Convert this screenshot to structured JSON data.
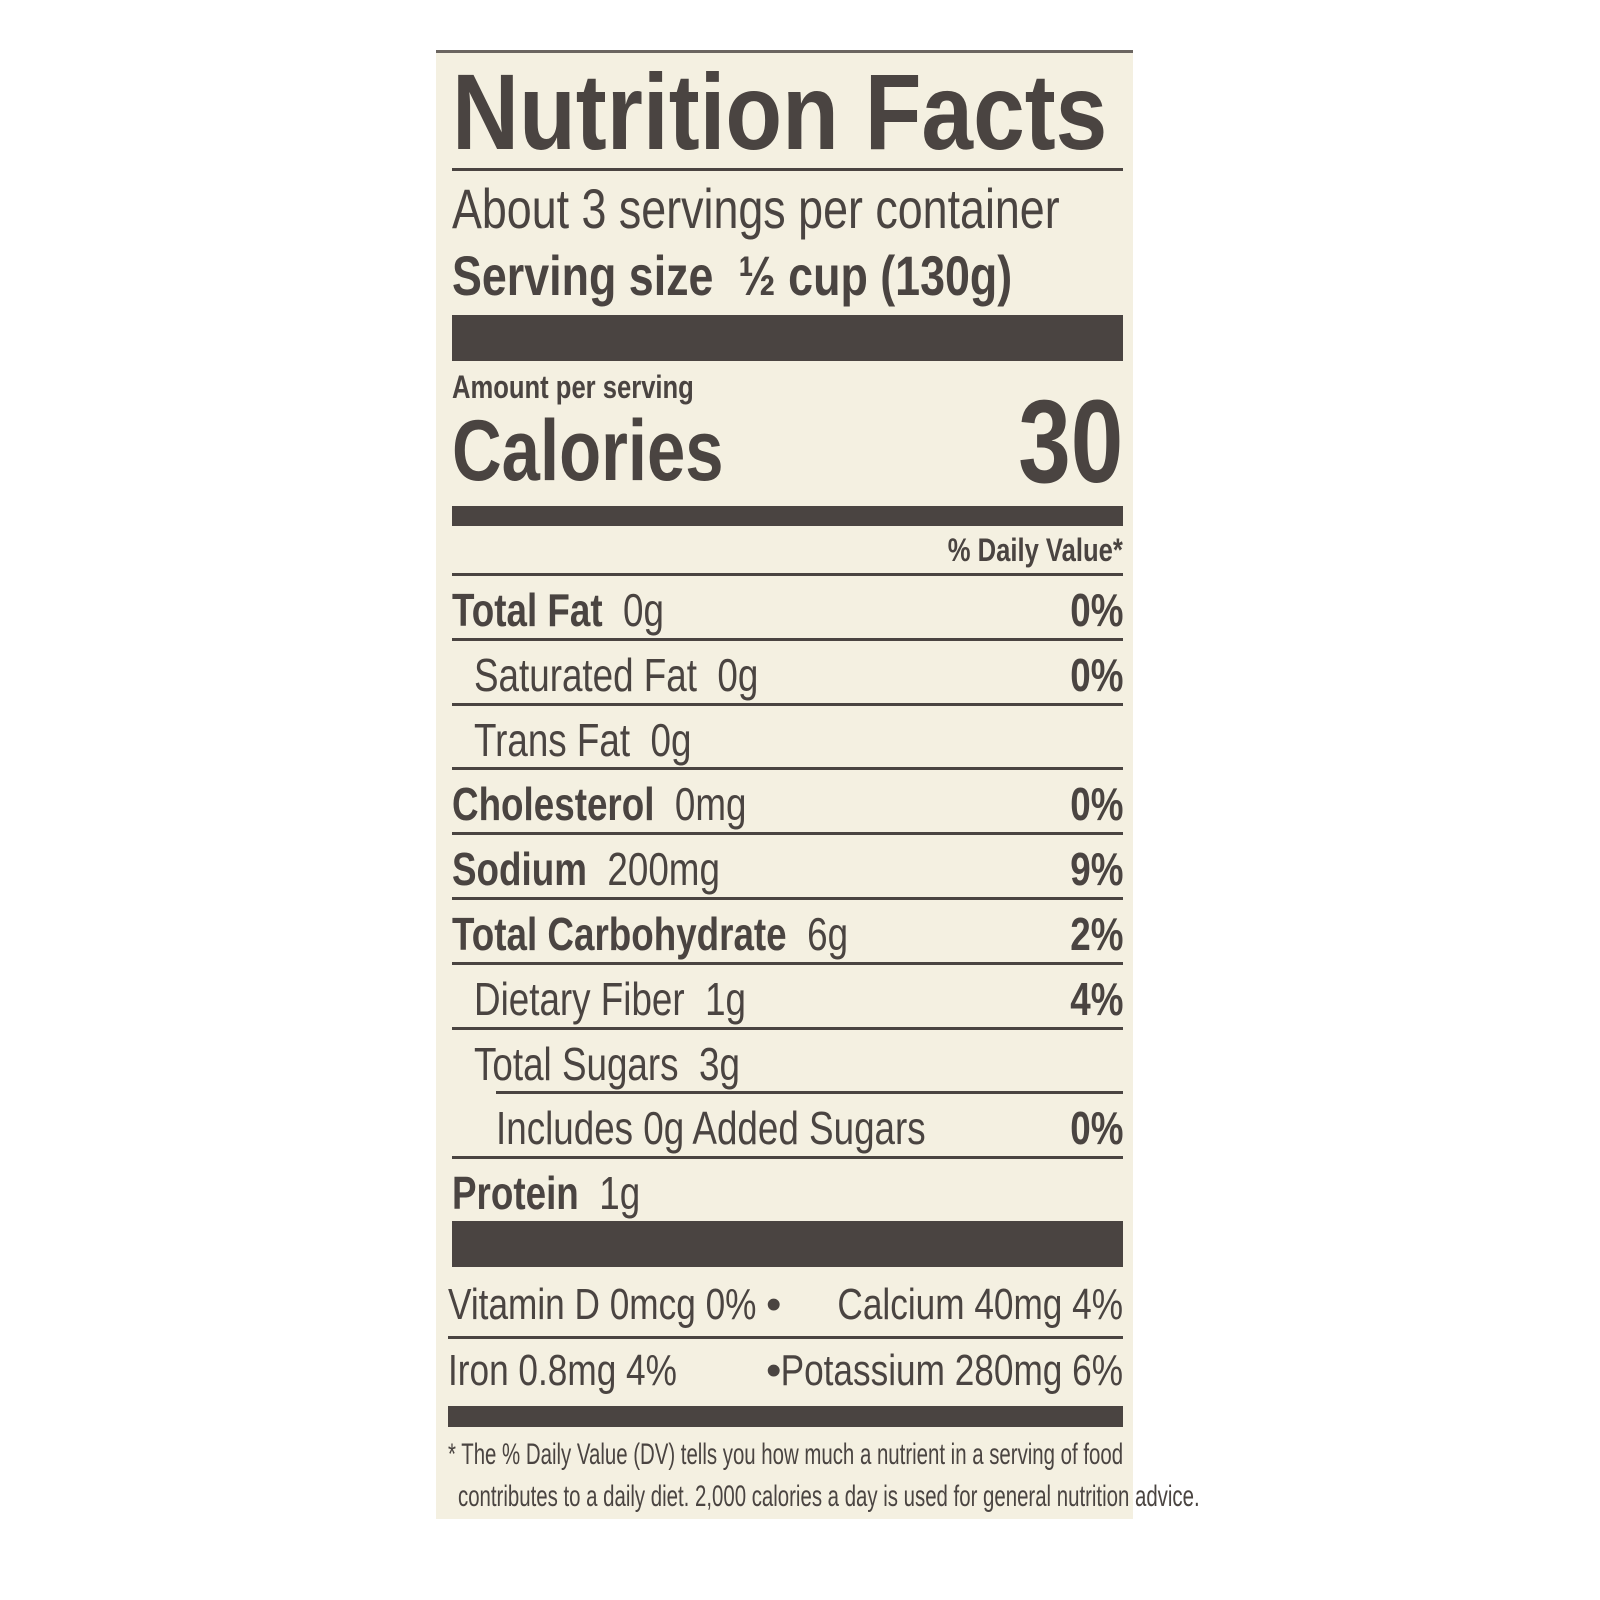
{
  "title": "Nutrition Facts",
  "servings_per_container": "About 3 servings per container",
  "serving_size": {
    "label": "Serving size",
    "value": "½ cup (130g)"
  },
  "amount_per_serving": "Amount per serving",
  "calories": {
    "label": "Calories",
    "value": "30"
  },
  "daily_value_header": "% Daily Value*",
  "nutrients": [
    {
      "name": "Total Fat",
      "amount": "0g",
      "dv": "0%"
    },
    {
      "name": "Saturated Fat",
      "amount": "0g",
      "dv": "0%"
    },
    {
      "name": "Trans Fat",
      "amount": "0g",
      "dv": ""
    },
    {
      "name": "Cholesterol",
      "amount": "0mg",
      "dv": "0%"
    },
    {
      "name": "Sodium",
      "amount": "200mg",
      "dv": "9%"
    },
    {
      "name": "Total Carbohydrate",
      "amount": "6g",
      "dv": "2%"
    },
    {
      "name": "Dietary Fiber",
      "amount": "1g",
      "dv": "4%"
    },
    {
      "name": "Total Sugars",
      "amount": "3g",
      "dv": ""
    },
    {
      "name": "Includes 0g Added Sugars",
      "amount": "",
      "dv": "0%"
    },
    {
      "name": "Protein",
      "amount": "1g",
      "dv": ""
    }
  ],
  "vitamins": [
    {
      "text": "Vitamin D  0mcg  0%"
    },
    {
      "text": "Calcium  40mg  4%"
    },
    {
      "text": "Iron  0.8mg  4%"
    },
    {
      "text": "Potassium  280mg  6%"
    }
  ],
  "bullet": "•",
  "footnote": {
    "line1": "* The % Daily Value (DV) tells you how much a nutrient in a serving of food",
    "line2": "contributes to a daily diet. 2,000 calories a day is used for general nutrition advice."
  },
  "colors": {
    "ink": "#4a4441",
    "background": "#f4f0e1"
  }
}
